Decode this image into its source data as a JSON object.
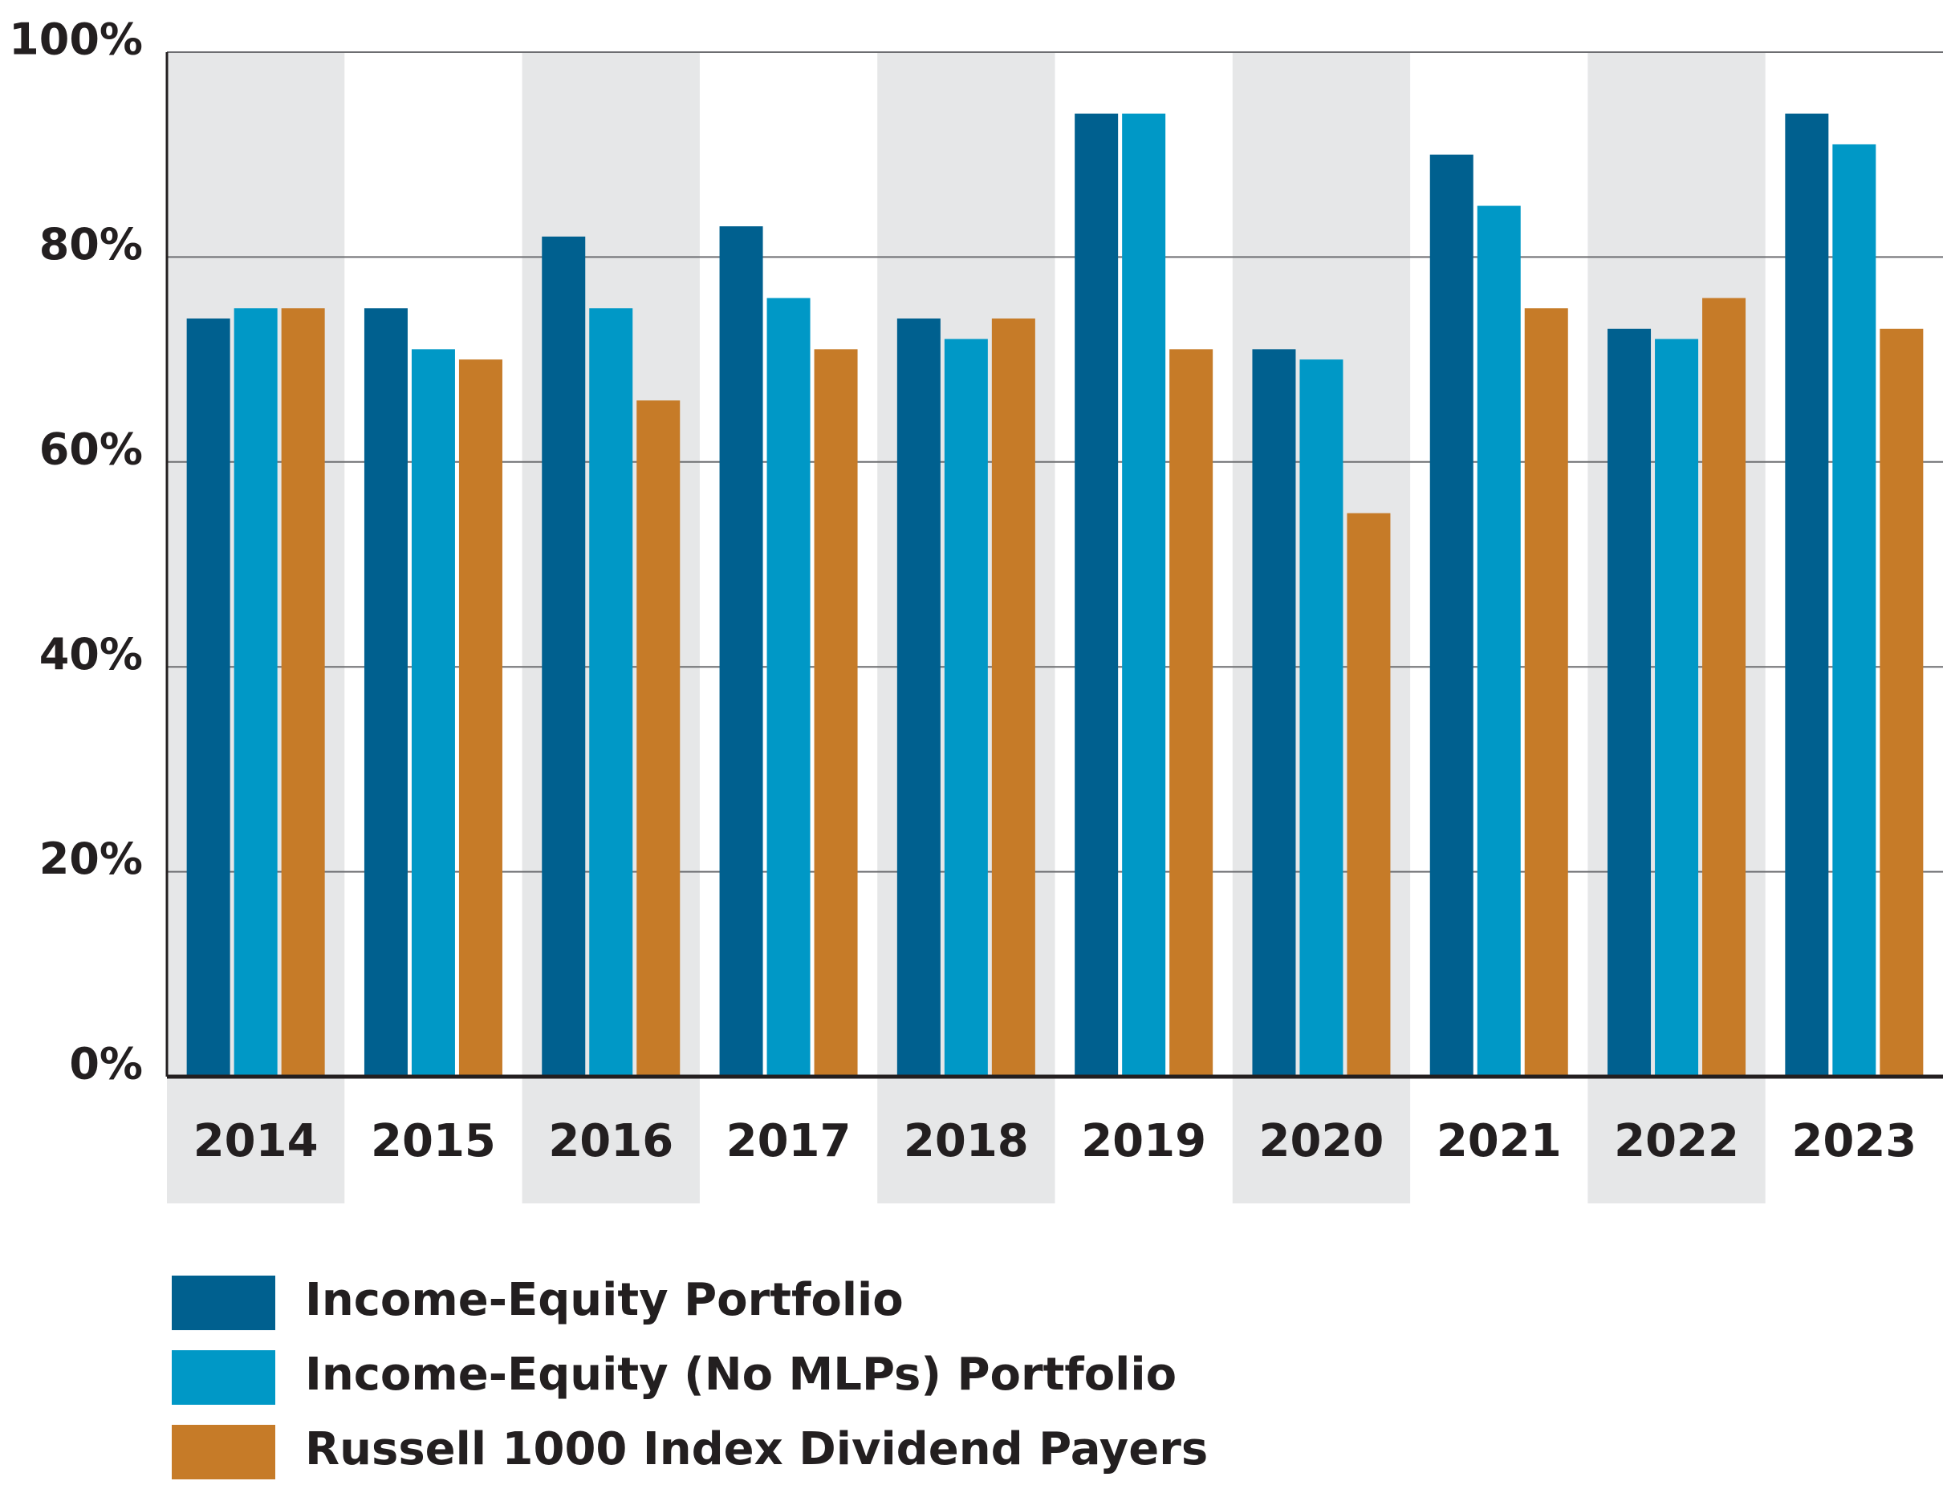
{
  "chart_data": {
    "type": "bar",
    "categories": [
      "2014",
      "2015",
      "2016",
      "2017",
      "2018",
      "2019",
      "2020",
      "2021",
      "2022",
      "2023"
    ],
    "series": [
      {
        "name": "Income-Equity Portfolio",
        "color": "#00608f",
        "values": [
          74,
          75,
          82,
          83,
          74,
          94,
          71,
          90,
          73,
          94
        ]
      },
      {
        "name": "Income-Equity (No MLPs) Portfolio",
        "color": "#0098c6",
        "values": [
          75,
          71,
          75,
          76,
          72,
          94,
          70,
          85,
          72,
          91
        ]
      },
      {
        "name": "Russell 1000 Index Dividend Payers",
        "color": "#c67b28",
        "values": [
          75,
          70,
          66,
          71,
          74,
          71,
          55,
          75,
          76,
          73
        ]
      }
    ],
    "ylim": [
      0,
      100
    ],
    "yticks": [
      {
        "value": 0,
        "label": "0%"
      },
      {
        "value": 20,
        "label": "20%"
      },
      {
        "value": 40,
        "label": "40%"
      },
      {
        "value": 60,
        "label": "60%"
      },
      {
        "value": 80,
        "label": "80%"
      },
      {
        "value": 100,
        "label": "100%"
      }
    ],
    "grid": true
  }
}
